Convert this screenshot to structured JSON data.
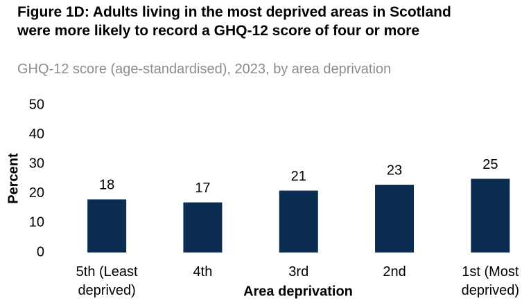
{
  "chart_data": {
    "type": "bar",
    "title": "Figure 1D: Adults living in the most deprived areas in Scotland were more likely to record a GHQ-12 score of four or more",
    "subtitle": "GHQ-12 score (age-standardised), 2023, by area deprivation",
    "x_label": "Area deprivation",
    "y_label": "Percent",
    "categories": [
      "5th (Least deprived)",
      "4th",
      "3rd",
      "2nd",
      "1st (Most deprived)"
    ],
    "values": [
      18,
      17,
      21,
      23,
      25
    ],
    "color": "#0b2d52",
    "ylim": [
      0,
      50
    ],
    "yticks": [
      0,
      10,
      20,
      30,
      40,
      50
    ],
    "grid": false
  }
}
